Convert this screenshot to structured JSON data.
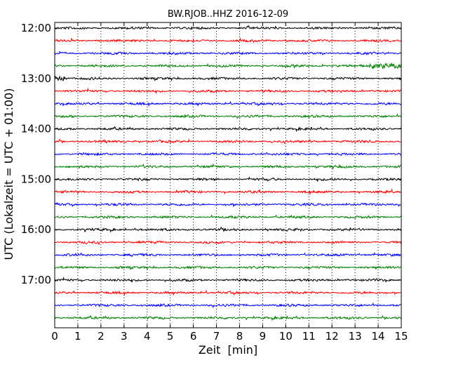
{
  "chart_data": {
    "type": "line",
    "title": "BW.RJOB..HHZ 2016-12-09",
    "xlabel": "Zeit  [min]",
    "ylabel": "UTC (Lokalzeit = UTC + 01:00)",
    "xlim": [
      0,
      15
    ],
    "x_ticks": [
      "0",
      "1",
      "2",
      "3",
      "4",
      "5",
      "6",
      "7",
      "8",
      "9",
      "10",
      "11",
      "12",
      "13",
      "14",
      "15"
    ],
    "y_ticks": [
      "12:00",
      "13:00",
      "14:00",
      "15:00",
      "16:00",
      "17:00"
    ],
    "grid": "vertical dotted",
    "trace_colors": [
      "#000000",
      "#ff0000",
      "#0000ff",
      "#007f00"
    ],
    "traces": [
      {
        "start": "12:00",
        "color": "#000000"
      },
      {
        "start": "12:15",
        "color": "#ff0000"
      },
      {
        "start": "12:30",
        "color": "#0000ff"
      },
      {
        "start": "12:45",
        "color": "#007f00",
        "event_minutes": [
          13.6,
          15
        ]
      },
      {
        "start": "13:00",
        "color": "#000000",
        "event_minutes": [
          0,
          0.6
        ]
      },
      {
        "start": "13:15",
        "color": "#ff0000"
      },
      {
        "start": "13:30",
        "color": "#0000ff"
      },
      {
        "start": "13:45",
        "color": "#007f00"
      },
      {
        "start": "14:00",
        "color": "#000000"
      },
      {
        "start": "14:15",
        "color": "#ff0000"
      },
      {
        "start": "14:30",
        "color": "#0000ff"
      },
      {
        "start": "14:45",
        "color": "#007f00"
      },
      {
        "start": "15:00",
        "color": "#000000"
      },
      {
        "start": "15:15",
        "color": "#ff0000"
      },
      {
        "start": "15:30",
        "color": "#0000ff"
      },
      {
        "start": "15:45",
        "color": "#007f00"
      },
      {
        "start": "16:00",
        "color": "#000000"
      },
      {
        "start": "16:15",
        "color": "#ff0000"
      },
      {
        "start": "16:30",
        "color": "#0000ff"
      },
      {
        "start": "16:45",
        "color": "#007f00"
      },
      {
        "start": "17:00",
        "color": "#000000"
      },
      {
        "start": "17:15",
        "color": "#ff0000"
      },
      {
        "start": "17:30",
        "color": "#0000ff"
      },
      {
        "start": "17:45",
        "color": "#007f00"
      }
    ]
  }
}
